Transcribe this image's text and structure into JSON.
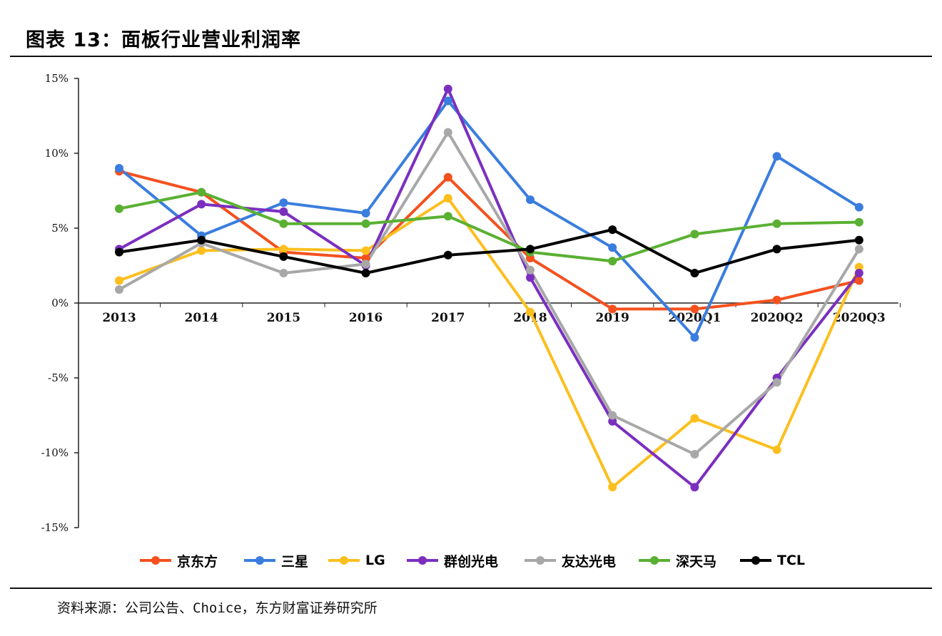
{
  "header": {
    "title": "图表 13：面板行业营业利润率"
  },
  "footer": {
    "source": "资料来源：公司公告、Choice，东方财富证券研究所"
  },
  "chart_data": {
    "type": "line",
    "title": "",
    "xlabel": "",
    "ylabel": "",
    "categories": [
      "2013",
      "2014",
      "2015",
      "2016",
      "2017",
      "2018",
      "2019",
      "2020Q1",
      "2020Q2",
      "2020Q3"
    ],
    "ylim": [
      -15,
      15
    ],
    "yticks": [
      15,
      10,
      5,
      0,
      -5,
      -10,
      -15
    ],
    "ytick_labels": [
      "15%",
      "10%",
      "5%",
      "0%",
      "-5%",
      "-10%",
      "-15%"
    ],
    "grid": false,
    "legend_position": "bottom",
    "series": [
      {
        "name": "京东方",
        "color": "#f4511e",
        "values": [
          8.8,
          7.4,
          3.4,
          3.0,
          8.4,
          3.0,
          -0.4,
          -0.4,
          0.2,
          1.5
        ]
      },
      {
        "name": "三星",
        "color": "#3a7dde",
        "values": [
          9.0,
          4.5,
          6.7,
          6.0,
          13.5,
          6.9,
          3.7,
          -2.3,
          9.8,
          6.4
        ]
      },
      {
        "name": "LG",
        "color": "#fcbf1e",
        "values": [
          1.5,
          3.5,
          3.6,
          3.5,
          7.0,
          -0.6,
          -12.3,
          -7.7,
          -9.8,
          2.4
        ]
      },
      {
        "name": "群创光电",
        "color": "#7b2fbf",
        "values": [
          3.6,
          6.6,
          6.1,
          2.5,
          14.3,
          1.7,
          -7.9,
          -12.3,
          -5.0,
          2.0
        ]
      },
      {
        "name": "友达光电",
        "color": "#a8a8a8",
        "values": [
          0.9,
          4.0,
          2.0,
          2.6,
          11.4,
          2.2,
          -7.5,
          -10.1,
          -5.3,
          3.6
        ]
      },
      {
        "name": "深天马",
        "color": "#5ab032",
        "values": [
          6.3,
          7.4,
          5.3,
          5.3,
          5.8,
          3.4,
          2.8,
          4.6,
          5.3,
          5.4
        ]
      },
      {
        "name": "TCL",
        "color": "#000000",
        "values": [
          3.4,
          4.2,
          3.1,
          2.0,
          3.2,
          3.6,
          4.9,
          2.0,
          3.6,
          4.2
        ]
      }
    ]
  }
}
